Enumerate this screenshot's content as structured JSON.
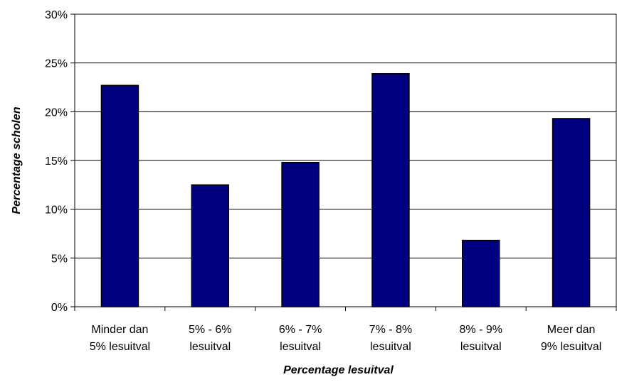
{
  "chart_data": {
    "type": "bar",
    "title": "",
    "xlabel": "Percentage lesuitval",
    "ylabel": "Percentage scholen",
    "ylim": [
      0,
      30
    ],
    "yticks": [
      0,
      5,
      10,
      15,
      20,
      25,
      30
    ],
    "ytick_labels": [
      "0%",
      "5%",
      "10%",
      "15%",
      "20%",
      "25%",
      "30%"
    ],
    "categories": [
      [
        "Minder dan",
        "5% lesuitval"
      ],
      [
        "5% - 6%",
        "lesuitval"
      ],
      [
        "6% - 7%",
        "lesuitval"
      ],
      [
        "7% - 8%",
        "lesuitval"
      ],
      [
        "8% - 9%",
        "lesuitval"
      ],
      [
        "Meer dan",
        "9% lesuitval"
      ]
    ],
    "values": [
      22.7,
      12.5,
      14.8,
      23.9,
      6.8,
      19.3
    ],
    "grid": true,
    "legend": "none",
    "colors": {
      "bar": "#000080",
      "bar_stroke": "#000000",
      "grid": "#000000"
    }
  }
}
